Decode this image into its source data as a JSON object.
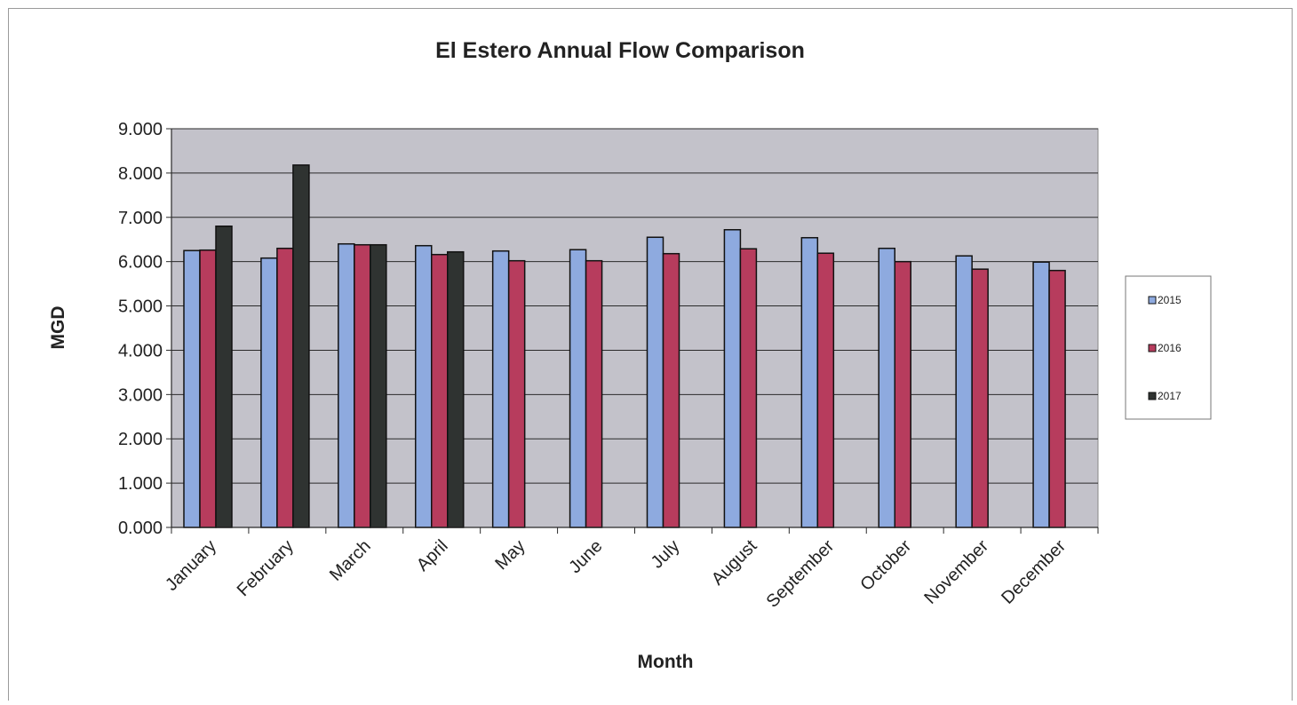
{
  "chart_data": {
    "type": "bar",
    "title": "El Estero Annual Flow Comparison",
    "xlabel": "Month",
    "ylabel": "MGD",
    "ylim": [
      0,
      9
    ],
    "yticks": [
      "0.000",
      "1.000",
      "2.000",
      "3.000",
      "4.000",
      "5.000",
      "6.000",
      "7.000",
      "8.000",
      "9.000"
    ],
    "grid": true,
    "legend_position": "right",
    "categories": [
      "January",
      "February",
      "March",
      "April",
      "May",
      "June",
      "July",
      "August",
      "September",
      "October",
      "November",
      "December"
    ],
    "series": [
      {
        "name": "2015",
        "color": "#8eaadf",
        "values": [
          6.25,
          6.08,
          6.4,
          6.36,
          6.24,
          6.27,
          6.55,
          6.72,
          6.54,
          6.3,
          6.13,
          5.99
        ]
      },
      {
        "name": "2016",
        "color": "#b73c5d",
        "values": [
          6.26,
          6.3,
          6.38,
          6.16,
          6.02,
          6.02,
          6.18,
          6.29,
          6.19,
          6.0,
          5.83,
          5.8
        ]
      },
      {
        "name": "2017",
        "color": "#2f3331",
        "values": [
          6.8,
          8.18,
          6.38,
          6.22,
          null,
          null,
          null,
          null,
          null,
          null,
          null,
          null
        ]
      }
    ],
    "plot_background": "#c3c2ca"
  }
}
